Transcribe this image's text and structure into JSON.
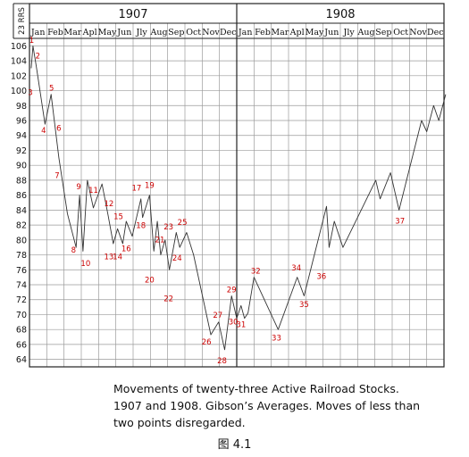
{
  "chart_data": {
    "type": "line",
    "year_labels": [
      "1907",
      "1908"
    ],
    "months": [
      "Jan",
      "Feb",
      "Mar",
      "Apl",
      "May",
      "Jun",
      "Jly",
      "Aug",
      "Sep",
      "Oct",
      "Nov",
      "Dec",
      "Jan",
      "Feb",
      "Mar",
      "Apl",
      "May",
      "Jun",
      "Jly",
      "Aug",
      "Sep",
      "Oct",
      "Nov",
      "Dec"
    ],
    "y_axis_label": "23 RRS",
    "ylim": [
      63,
      107
    ],
    "yticks": [
      64,
      66,
      68,
      70,
      72,
      74,
      76,
      78,
      80,
      82,
      84,
      86,
      88,
      90,
      92,
      94,
      96,
      98,
      100,
      102,
      104,
      106
    ],
    "grid": true,
    "series": [
      {
        "points": [
          [
            0.1,
            103
          ],
          [
            0.2,
            106
          ],
          [
            0.4,
            103.2
          ],
          [
            0.9,
            95.5
          ],
          [
            1.25,
            99.5
          ],
          [
            1.7,
            91
          ],
          [
            2.2,
            83.5
          ],
          [
            2.7,
            79
          ],
          [
            2.9,
            86
          ],
          [
            3.1,
            78.5
          ],
          [
            3.35,
            88
          ],
          [
            3.7,
            84.3
          ],
          [
            4.2,
            87.5
          ],
          [
            4.55,
            83.3
          ],
          [
            4.85,
            79.5
          ],
          [
            5.1,
            81.5
          ],
          [
            5.4,
            79.5
          ],
          [
            5.6,
            82.5
          ],
          [
            5.95,
            80.5
          ],
          [
            6.45,
            85.5
          ],
          [
            6.55,
            83
          ],
          [
            6.95,
            86
          ],
          [
            7.2,
            78.5
          ],
          [
            7.4,
            82.5
          ],
          [
            7.6,
            78
          ],
          [
            7.85,
            80
          ],
          [
            8.1,
            76
          ],
          [
            8.5,
            81
          ],
          [
            8.7,
            79
          ],
          [
            9.1,
            81
          ],
          [
            9.5,
            78
          ],
          [
            10.5,
            67.3
          ],
          [
            10.95,
            69
          ],
          [
            11.3,
            65.3
          ],
          [
            11.7,
            72.5
          ],
          [
            12.0,
            69.5
          ],
          [
            12.25,
            71.2
          ],
          [
            12.45,
            69.5
          ],
          [
            12.65,
            70.2
          ],
          [
            13.0,
            75
          ],
          [
            14.4,
            68
          ],
          [
            15.5,
            75
          ],
          [
            15.9,
            72.5
          ],
          [
            17.2,
            84.5
          ],
          [
            17.35,
            79
          ],
          [
            17.65,
            82.5
          ],
          [
            18.15,
            79
          ],
          [
            20.05,
            88
          ],
          [
            20.3,
            85.5
          ],
          [
            20.9,
            89
          ],
          [
            21.4,
            84
          ],
          [
            22.7,
            96
          ],
          [
            23.0,
            94.5
          ],
          [
            23.4,
            98
          ],
          [
            23.7,
            96
          ],
          [
            24.1,
            99.5
          ]
        ]
      }
    ],
    "annotations": [
      {
        "label": "1",
        "x": 0.13,
        "y": 106.4
      },
      {
        "label": "2",
        "x": 0.48,
        "y": 104.3
      },
      {
        "label": "3",
        "x": 0.05,
        "y": 99.4
      },
      {
        "label": "4",
        "x": 0.82,
        "y": 94.3
      },
      {
        "label": "5",
        "x": 1.28,
        "y": 100.0
      },
      {
        "label": "6",
        "x": 1.7,
        "y": 94.6
      },
      {
        "label": "7",
        "x": 1.6,
        "y": 88.3
      },
      {
        "label": "8",
        "x": 2.55,
        "y": 78.3
      },
      {
        "label": "9",
        "x": 2.85,
        "y": 86.8
      },
      {
        "label": "10",
        "x": 3.25,
        "y": 76.5
      },
      {
        "label": "11",
        "x": 3.7,
        "y": 86.3
      },
      {
        "label": "12",
        "x": 4.6,
        "y": 84.5
      },
      {
        "label": "13",
        "x": 4.6,
        "y": 77.4
      },
      {
        "label": "14",
        "x": 5.1,
        "y": 77.4
      },
      {
        "label": "15",
        "x": 5.15,
        "y": 82.8
      },
      {
        "label": "16",
        "x": 5.6,
        "y": 78.5
      },
      {
        "label": "17",
        "x": 6.2,
        "y": 86.6
      },
      {
        "label": "18",
        "x": 6.45,
        "y": 81.6
      },
      {
        "label": "19",
        "x": 6.95,
        "y": 87.0
      },
      {
        "label": "20",
        "x": 6.95,
        "y": 74.3
      },
      {
        "label": "21",
        "x": 7.55,
        "y": 79.7
      },
      {
        "label": "22",
        "x": 8.05,
        "y": 71.8
      },
      {
        "label": "23",
        "x": 8.05,
        "y": 81.4
      },
      {
        "label": "24",
        "x": 8.55,
        "y": 77.2
      },
      {
        "label": "25",
        "x": 8.85,
        "y": 82.0
      },
      {
        "label": "26",
        "x": 10.25,
        "y": 66.0
      },
      {
        "label": "27",
        "x": 10.9,
        "y": 69.6
      },
      {
        "label": "28",
        "x": 11.15,
        "y": 63.5
      },
      {
        "label": "29",
        "x": 11.7,
        "y": 73.0
      },
      {
        "label": "30",
        "x": 11.8,
        "y": 68.7
      },
      {
        "label": "31",
        "x": 12.25,
        "y": 68.3
      },
      {
        "label": "32",
        "x": 13.1,
        "y": 75.5
      },
      {
        "label": "33",
        "x": 14.3,
        "y": 66.5
      },
      {
        "label": "34",
        "x": 15.45,
        "y": 75.9
      },
      {
        "label": "35",
        "x": 15.9,
        "y": 71.0
      },
      {
        "label": "36",
        "x": 16.9,
        "y": 74.8
      },
      {
        "label": "37",
        "x": 21.45,
        "y": 82.2
      }
    ]
  },
  "caption": {
    "line1": "Movements of twenty-three Active Railroad Stocks.",
    "line2": "1907 and 1908. Gibson’s  Averages. Moves of less than",
    "line3": "two points disregarded.",
    "figure_label": "图 4.1"
  },
  "colors": {
    "line": "#333333",
    "grid": "#9a9a9a",
    "frame": "#222222",
    "annotation": "#cc0000",
    "text": "#111111"
  }
}
